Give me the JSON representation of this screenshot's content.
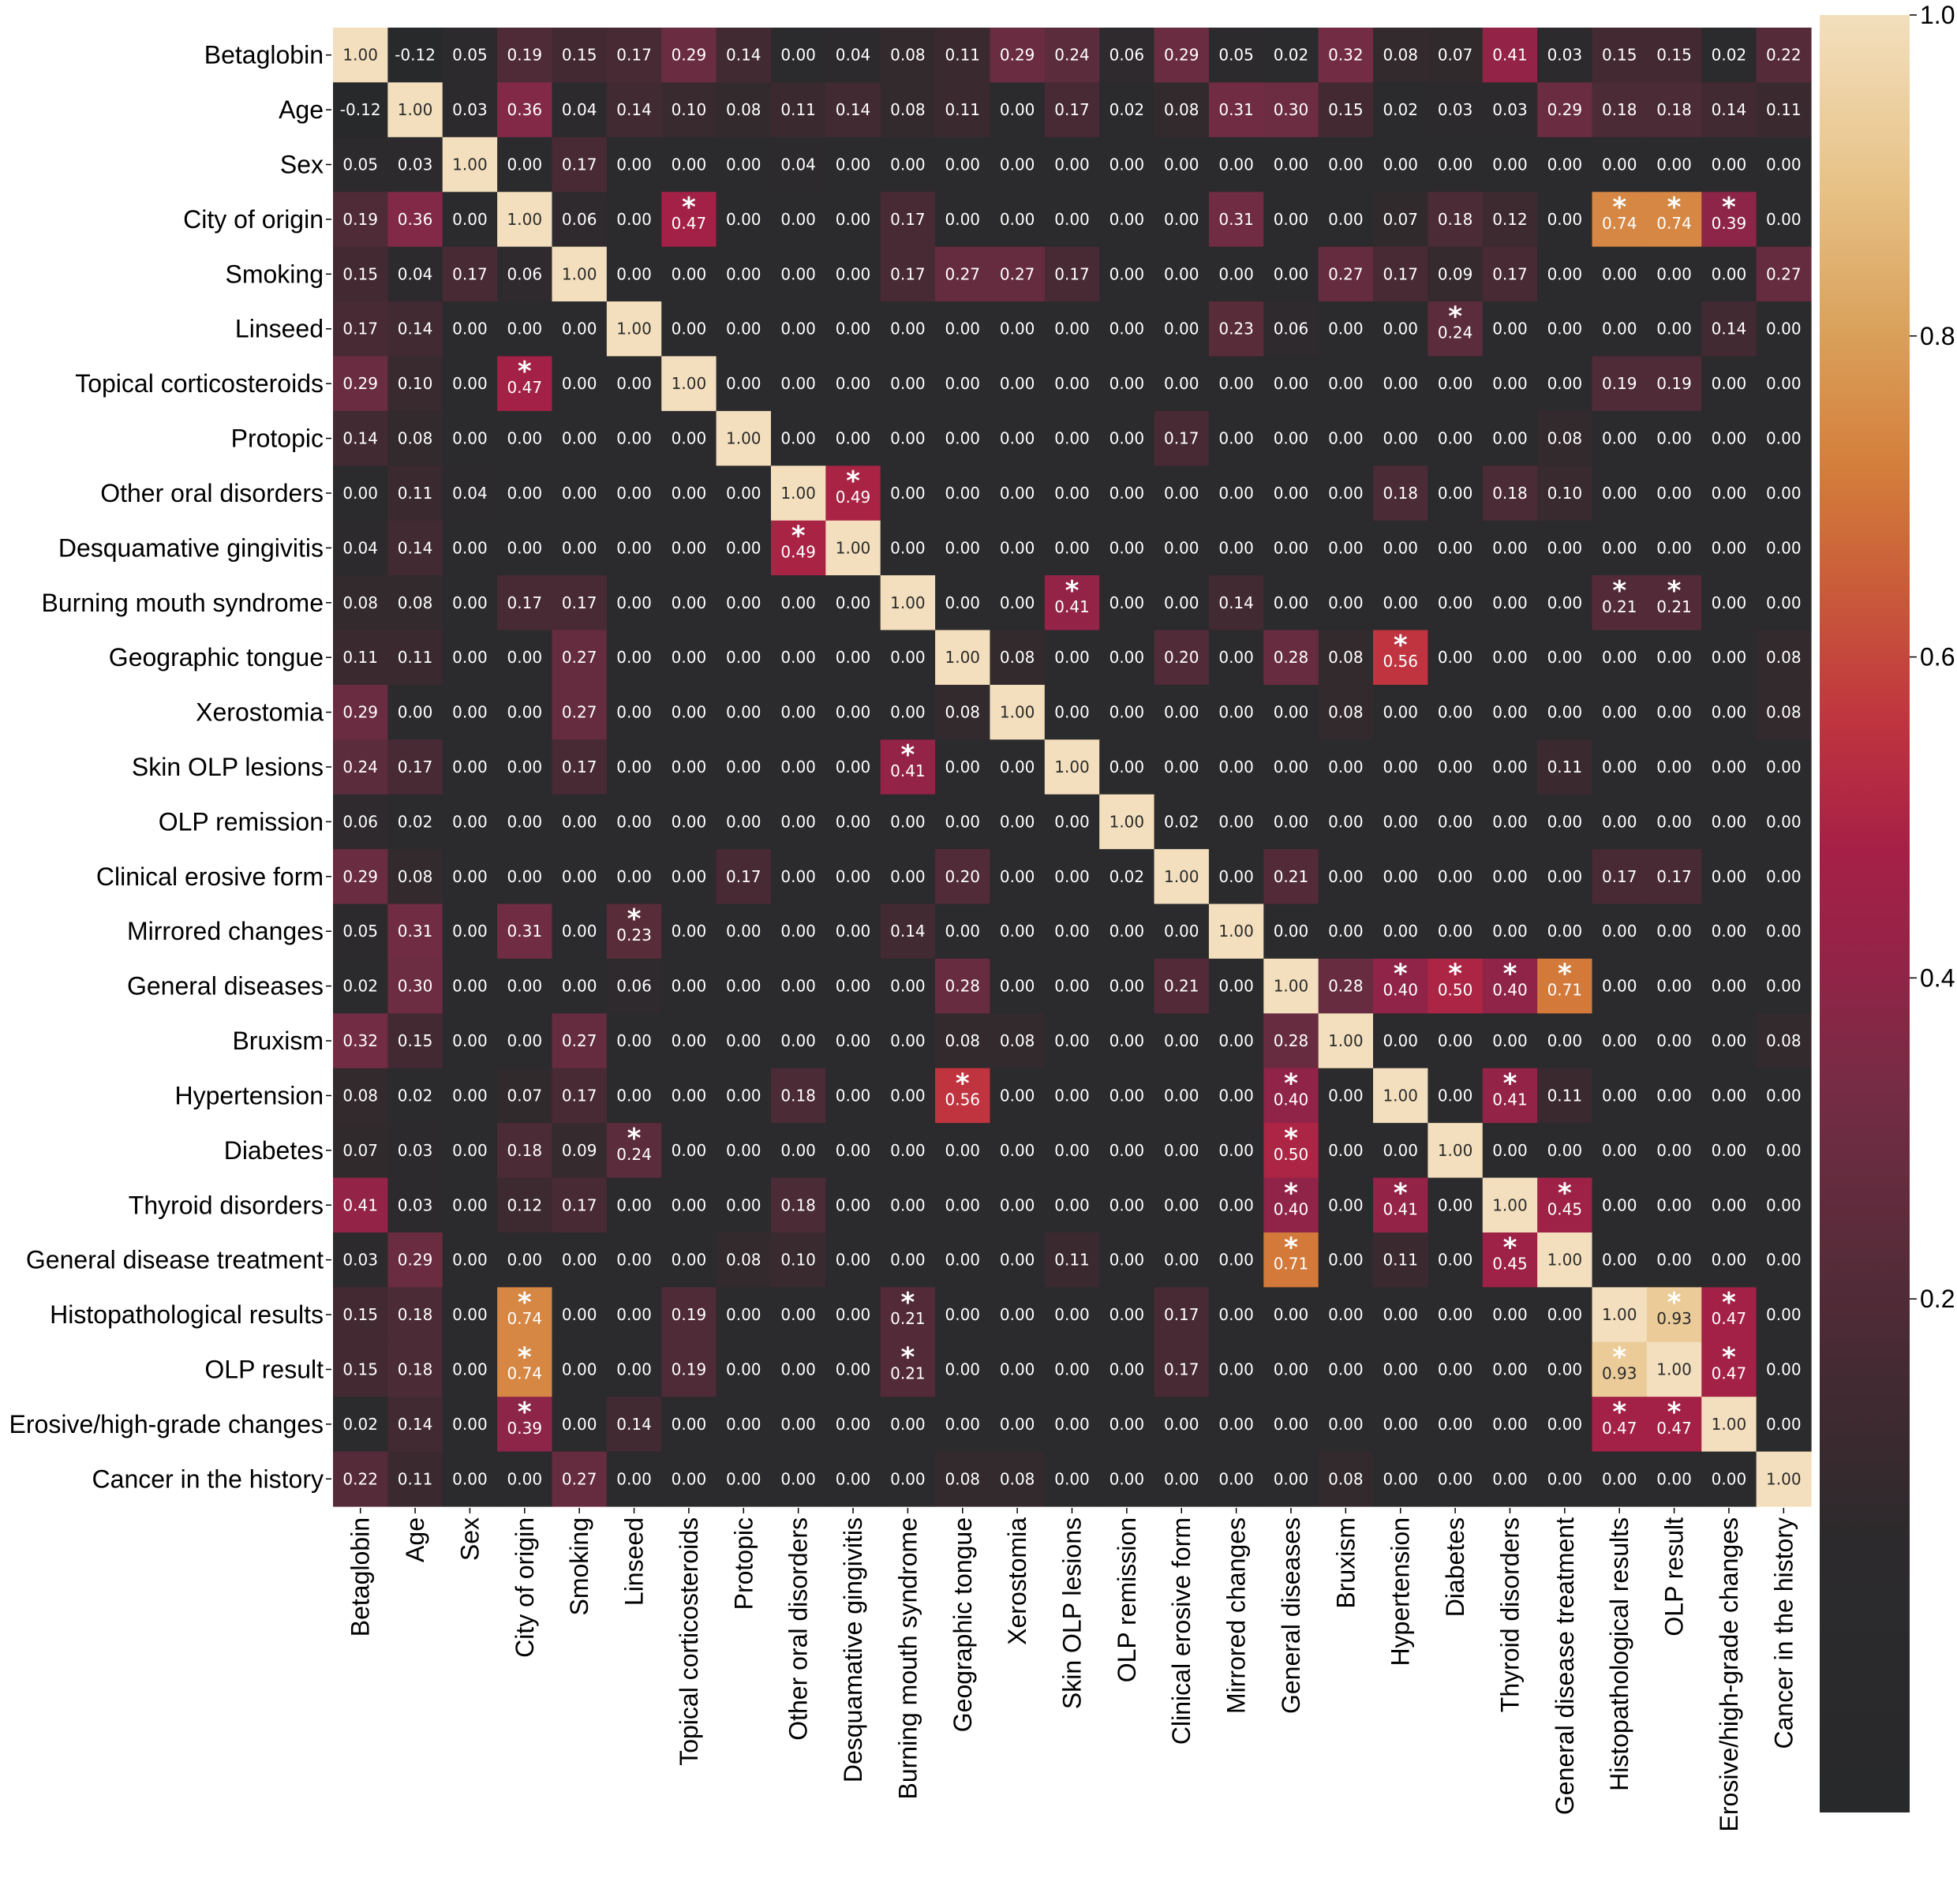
{
  "chart_data": {
    "type": "heatmap",
    "title": "",
    "xlabel": "",
    "ylabel": "",
    "labels": [
      "Betaglobin",
      "Age",
      "Sex",
      "City of origin",
      "Smoking",
      "Linseed",
      "Topical corticosteroids",
      "Protopic",
      "Other oral disorders",
      "Desquamative gingivitis",
      "Burning mouth syndrome",
      "Geographic tongue",
      "Xerostomia",
      "Skin OLP lesions",
      "OLP remission",
      "Clinical erosive form",
      "Mirrored changes",
      "General diseases",
      "Bruxism",
      "Hypertension",
      "Diabetes",
      "Thyroid disorders",
      "General disease treatment",
      "Histopathological results",
      "OLP result",
      "Erosive/high-grade changes",
      "Cancer in the history"
    ],
    "matrix": [
      [
        1.0,
        -0.12,
        0.05,
        0.19,
        0.15,
        0.17,
        0.29,
        0.14,
        0.0,
        0.04,
        0.08,
        0.11,
        0.29,
        0.24,
        0.06,
        0.29,
        0.05,
        0.02,
        0.32,
        0.08,
        0.07,
        0.41,
        0.03,
        0.15,
        0.15,
        0.02,
        0.22
      ],
      [
        -0.12,
        1.0,
        0.03,
        0.36,
        0.04,
        0.14,
        0.1,
        0.08,
        0.11,
        0.14,
        0.08,
        0.11,
        0.0,
        0.17,
        0.02,
        0.08,
        0.31,
        0.3,
        0.15,
        0.02,
        0.03,
        0.03,
        0.29,
        0.18,
        0.18,
        0.14,
        0.11
      ],
      [
        0.05,
        0.03,
        1.0,
        0.0,
        0.17,
        0.0,
        0.0,
        0.0,
        0.04,
        0.0,
        0.0,
        0.0,
        0.0,
        0.0,
        0.0,
        0.0,
        0.0,
        0.0,
        0.0,
        0.0,
        0.0,
        0.0,
        0.0,
        0.0,
        0.0,
        0.0,
        0.0
      ],
      [
        0.19,
        0.36,
        0.0,
        1.0,
        0.06,
        0.0,
        0.47,
        0.0,
        0.0,
        0.0,
        0.17,
        0.0,
        0.0,
        0.0,
        0.0,
        0.0,
        0.31,
        0.0,
        0.0,
        0.07,
        0.18,
        0.12,
        0.0,
        0.74,
        0.74,
        0.39,
        0.0
      ],
      [
        0.15,
        0.04,
        0.17,
        0.06,
        1.0,
        0.0,
        0.0,
        0.0,
        0.0,
        0.0,
        0.17,
        0.27,
        0.27,
        0.17,
        0.0,
        0.0,
        0.0,
        0.0,
        0.27,
        0.17,
        0.09,
        0.17,
        0.0,
        0.0,
        0.0,
        0.0,
        0.27
      ],
      [
        0.17,
        0.14,
        0.0,
        0.0,
        0.0,
        1.0,
        0.0,
        0.0,
        0.0,
        0.0,
        0.0,
        0.0,
        0.0,
        0.0,
        0.0,
        0.0,
        0.23,
        0.06,
        0.0,
        0.0,
        0.24,
        0.0,
        0.0,
        0.0,
        0.0,
        0.14,
        0.0
      ],
      [
        0.29,
        0.1,
        0.0,
        0.47,
        0.0,
        0.0,
        1.0,
        0.0,
        0.0,
        0.0,
        0.0,
        0.0,
        0.0,
        0.0,
        0.0,
        0.0,
        0.0,
        0.0,
        0.0,
        0.0,
        0.0,
        0.0,
        0.0,
        0.19,
        0.19,
        0.0,
        0.0
      ],
      [
        0.14,
        0.08,
        0.0,
        0.0,
        0.0,
        0.0,
        0.0,
        1.0,
        0.0,
        0.0,
        0.0,
        0.0,
        0.0,
        0.0,
        0.0,
        0.17,
        0.0,
        0.0,
        0.0,
        0.0,
        0.0,
        0.0,
        0.08,
        0.0,
        0.0,
        0.0,
        0.0
      ],
      [
        0.0,
        0.11,
        0.04,
        0.0,
        0.0,
        0.0,
        0.0,
        0.0,
        1.0,
        0.49,
        0.0,
        0.0,
        0.0,
        0.0,
        0.0,
        0.0,
        0.0,
        0.0,
        0.0,
        0.18,
        0.0,
        0.18,
        0.1,
        0.0,
        0.0,
        0.0,
        0.0
      ],
      [
        0.04,
        0.14,
        0.0,
        0.0,
        0.0,
        0.0,
        0.0,
        0.0,
        0.49,
        1.0,
        0.0,
        0.0,
        0.0,
        0.0,
        0.0,
        0.0,
        0.0,
        0.0,
        0.0,
        0.0,
        0.0,
        0.0,
        0.0,
        0.0,
        0.0,
        0.0,
        0.0
      ],
      [
        0.08,
        0.08,
        0.0,
        0.17,
        0.17,
        0.0,
        0.0,
        0.0,
        0.0,
        0.0,
        1.0,
        0.0,
        0.0,
        0.41,
        0.0,
        0.0,
        0.14,
        0.0,
        0.0,
        0.0,
        0.0,
        0.0,
        0.0,
        0.21,
        0.21,
        0.0,
        0.0
      ],
      [
        0.11,
        0.11,
        0.0,
        0.0,
        0.27,
        0.0,
        0.0,
        0.0,
        0.0,
        0.0,
        0.0,
        1.0,
        0.08,
        0.0,
        0.0,
        0.2,
        0.0,
        0.28,
        0.08,
        0.56,
        0.0,
        0.0,
        0.0,
        0.0,
        0.0,
        0.0,
        0.08
      ],
      [
        0.29,
        0.0,
        0.0,
        0.0,
        0.27,
        0.0,
        0.0,
        0.0,
        0.0,
        0.0,
        0.0,
        0.08,
        1.0,
        0.0,
        0.0,
        0.0,
        0.0,
        0.0,
        0.08,
        0.0,
        0.0,
        0.0,
        0.0,
        0.0,
        0.0,
        0.0,
        0.08
      ],
      [
        0.24,
        0.17,
        0.0,
        0.0,
        0.17,
        0.0,
        0.0,
        0.0,
        0.0,
        0.0,
        0.41,
        0.0,
        0.0,
        1.0,
        0.0,
        0.0,
        0.0,
        0.0,
        0.0,
        0.0,
        0.0,
        0.0,
        0.11,
        0.0,
        0.0,
        0.0,
        0.0
      ],
      [
        0.06,
        0.02,
        0.0,
        0.0,
        0.0,
        0.0,
        0.0,
        0.0,
        0.0,
        0.0,
        0.0,
        0.0,
        0.0,
        0.0,
        1.0,
        0.02,
        0.0,
        0.0,
        0.0,
        0.0,
        0.0,
        0.0,
        0.0,
        0.0,
        0.0,
        0.0,
        0.0
      ],
      [
        0.29,
        0.08,
        0.0,
        0.0,
        0.0,
        0.0,
        0.0,
        0.17,
        0.0,
        0.0,
        0.0,
        0.2,
        0.0,
        0.0,
        0.02,
        1.0,
        0.0,
        0.21,
        0.0,
        0.0,
        0.0,
        0.0,
        0.0,
        0.17,
        0.17,
        0.0,
        0.0
      ],
      [
        0.05,
        0.31,
        0.0,
        0.31,
        0.0,
        0.23,
        0.0,
        0.0,
        0.0,
        0.0,
        0.14,
        0.0,
        0.0,
        0.0,
        0.0,
        0.0,
        1.0,
        0.0,
        0.0,
        0.0,
        0.0,
        0.0,
        0.0,
        0.0,
        0.0,
        0.0,
        0.0
      ],
      [
        0.02,
        0.3,
        0.0,
        0.0,
        0.0,
        0.06,
        0.0,
        0.0,
        0.0,
        0.0,
        0.0,
        0.28,
        0.0,
        0.0,
        0.0,
        0.21,
        0.0,
        1.0,
        0.28,
        0.4,
        0.5,
        0.4,
        0.71,
        0.0,
        0.0,
        0.0,
        0.0
      ],
      [
        0.32,
        0.15,
        0.0,
        0.0,
        0.27,
        0.0,
        0.0,
        0.0,
        0.0,
        0.0,
        0.0,
        0.08,
        0.08,
        0.0,
        0.0,
        0.0,
        0.0,
        0.28,
        1.0,
        0.0,
        0.0,
        0.0,
        0.0,
        0.0,
        0.0,
        0.0,
        0.08
      ],
      [
        0.08,
        0.02,
        0.0,
        0.07,
        0.17,
        0.0,
        0.0,
        0.0,
        0.18,
        0.0,
        0.0,
        0.56,
        0.0,
        0.0,
        0.0,
        0.0,
        0.0,
        0.4,
        0.0,
        1.0,
        0.0,
        0.41,
        0.11,
        0.0,
        0.0,
        0.0,
        0.0
      ],
      [
        0.07,
        0.03,
        0.0,
        0.18,
        0.09,
        0.24,
        0.0,
        0.0,
        0.0,
        0.0,
        0.0,
        0.0,
        0.0,
        0.0,
        0.0,
        0.0,
        0.0,
        0.5,
        0.0,
        0.0,
        1.0,
        0.0,
        0.0,
        0.0,
        0.0,
        0.0,
        0.0
      ],
      [
        0.41,
        0.03,
        0.0,
        0.12,
        0.17,
        0.0,
        0.0,
        0.0,
        0.18,
        0.0,
        0.0,
        0.0,
        0.0,
        0.0,
        0.0,
        0.0,
        0.0,
        0.4,
        0.0,
        0.41,
        0.0,
        1.0,
        0.45,
        0.0,
        0.0,
        0.0,
        0.0
      ],
      [
        0.03,
        0.29,
        0.0,
        0.0,
        0.0,
        0.0,
        0.0,
        0.08,
        0.1,
        0.0,
        0.0,
        0.0,
        0.0,
        0.11,
        0.0,
        0.0,
        0.0,
        0.71,
        0.0,
        0.11,
        0.0,
        0.45,
        1.0,
        0.0,
        0.0,
        0.0,
        0.0
      ],
      [
        0.15,
        0.18,
        0.0,
        0.74,
        0.0,
        0.0,
        0.19,
        0.0,
        0.0,
        0.0,
        0.21,
        0.0,
        0.0,
        0.0,
        0.0,
        0.17,
        0.0,
        0.0,
        0.0,
        0.0,
        0.0,
        0.0,
        0.0,
        1.0,
        0.93,
        0.47,
        0.0
      ],
      [
        0.15,
        0.18,
        0.0,
        0.74,
        0.0,
        0.0,
        0.19,
        0.0,
        0.0,
        0.0,
        0.21,
        0.0,
        0.0,
        0.0,
        0.0,
        0.17,
        0.0,
        0.0,
        0.0,
        0.0,
        0.0,
        0.0,
        0.0,
        0.93,
        1.0,
        0.47,
        0.0
      ],
      [
        0.02,
        0.14,
        0.0,
        0.39,
        0.0,
        0.14,
        0.0,
        0.0,
        0.0,
        0.0,
        0.0,
        0.0,
        0.0,
        0.0,
        0.0,
        0.0,
        0.0,
        0.0,
        0.0,
        0.0,
        0.0,
        0.0,
        0.0,
        0.47,
        0.47,
        1.0,
        0.0
      ],
      [
        0.22,
        0.11,
        0.0,
        0.0,
        0.27,
        0.0,
        0.0,
        0.0,
        0.0,
        0.0,
        0.0,
        0.08,
        0.08,
        0.0,
        0.0,
        0.0,
        0.0,
        0.0,
        0.08,
        0.0,
        0.0,
        0.0,
        0.0,
        0.0,
        0.0,
        0.0,
        1.0
      ]
    ],
    "significant": [
      [
        3,
        6
      ],
      [
        3,
        23
      ],
      [
        3,
        24
      ],
      [
        3,
        25
      ],
      [
        5,
        20
      ],
      [
        6,
        3
      ],
      [
        8,
        9
      ],
      [
        9,
        8
      ],
      [
        10,
        13
      ],
      [
        10,
        23
      ],
      [
        10,
        24
      ],
      [
        11,
        19
      ],
      [
        13,
        10
      ],
      [
        16,
        5
      ],
      [
        17,
        19
      ],
      [
        17,
        20
      ],
      [
        17,
        21
      ],
      [
        17,
        22
      ],
      [
        19,
        11
      ],
      [
        19,
        17
      ],
      [
        19,
        21
      ],
      [
        20,
        5
      ],
      [
        20,
        17
      ],
      [
        21,
        17
      ],
      [
        21,
        19
      ],
      [
        21,
        22
      ],
      [
        22,
        17
      ],
      [
        22,
        21
      ],
      [
        23,
        3
      ],
      [
        23,
        10
      ],
      [
        23,
        24
      ],
      [
        23,
        25
      ],
      [
        24,
        3
      ],
      [
        24,
        10
      ],
      [
        24,
        23
      ],
      [
        24,
        25
      ],
      [
        25,
        3
      ],
      [
        25,
        23
      ],
      [
        25,
        24
      ]
    ],
    "significance_marker": "*",
    "value_format": "2 decimals",
    "colorbar": {
      "range": [
        -0.12,
        1.0
      ],
      "ticks": [
        "0.2",
        "0.4",
        "0.6",
        "0.8",
        "1.0"
      ],
      "tick_values": [
        0.2,
        0.4,
        0.6,
        0.8,
        1.0
      ],
      "placement": "right"
    },
    "colormap_stops": [
      {
        "v": -0.12,
        "color": "#28292b"
      },
      {
        "v": 0.05,
        "color": "#2c2a2c"
      },
      {
        "v": 0.15,
        "color": "#432a32"
      },
      {
        "v": 0.25,
        "color": "#5e2c3c"
      },
      {
        "v": 0.33,
        "color": "#752c44"
      },
      {
        "v": 0.41,
        "color": "#942348"
      },
      {
        "v": 0.48,
        "color": "#a62046"
      },
      {
        "v": 0.56,
        "color": "#c0343f"
      },
      {
        "v": 0.64,
        "color": "#c95a3a"
      },
      {
        "v": 0.72,
        "color": "#d47f3b"
      },
      {
        "v": 0.8,
        "color": "#d9a05a"
      },
      {
        "v": 0.9,
        "color": "#e8c48a"
      },
      {
        "v": 1.0,
        "color": "#f3dfbd"
      }
    ],
    "text_colors": {
      "on_dark": "#ffffff",
      "on_light": "#2b2b2b"
    },
    "grid": false,
    "legend": "none"
  }
}
